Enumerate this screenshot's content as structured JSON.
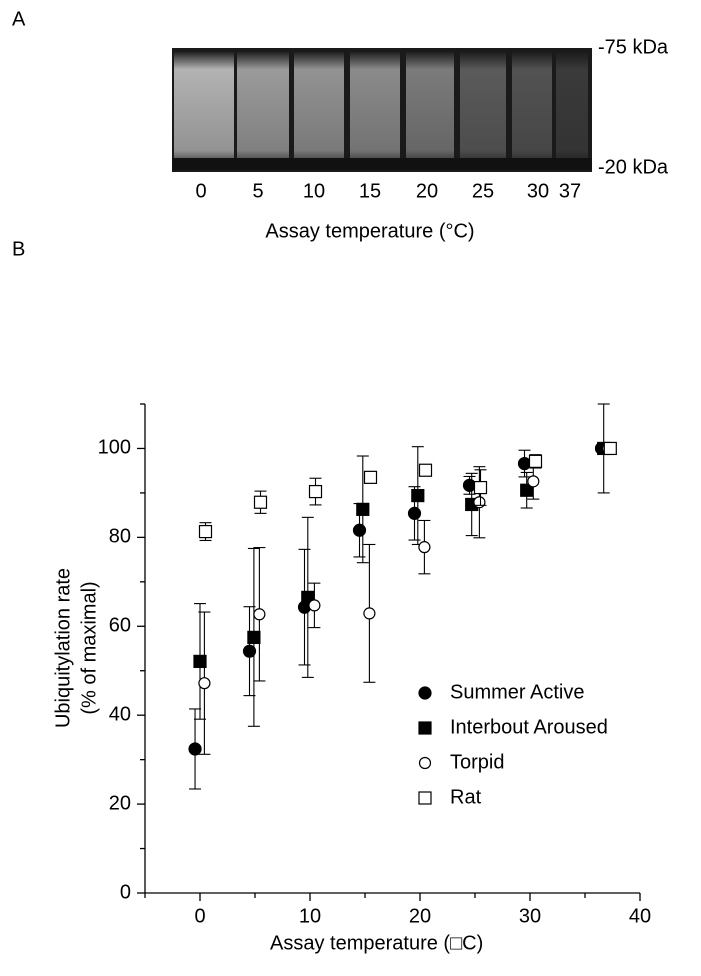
{
  "panel_a": {
    "label": "A",
    "lanes": [
      "0",
      "5",
      "10",
      "15",
      "20",
      "25",
      "30",
      "37"
    ],
    "markers": [
      "-75 kDa",
      "-20 kDa"
    ],
    "xlabel": "Assay temperature (°C)"
  },
  "chart_data": {
    "type": "scatter",
    "panel_label": "B",
    "xlabel": "Assay temperature (□C)",
    "ylabel": [
      "Ubiquitylation rate",
      "(% of maximal)"
    ],
    "xlim": [
      -5,
      40
    ],
    "ylim": [
      0,
      110
    ],
    "xticks": [
      0,
      10,
      20,
      30,
      40
    ],
    "yticks": [
      0,
      20,
      40,
      60,
      80,
      100
    ],
    "xminor": [
      -5,
      5,
      15,
      25,
      35
    ],
    "yminor": [
      10,
      30,
      50,
      70,
      90,
      110
    ],
    "series": [
      {
        "name": "Summer Active",
        "color": "#000000",
        "marker": "circle",
        "filled": true,
        "x": [
          -0.45,
          4.5,
          9.5,
          14.5,
          19.5,
          24.5,
          29.5,
          36.5
        ],
        "values": [
          32.4,
          54.4,
          64.3,
          81.6,
          85.4,
          91.7,
          96.6,
          100
        ],
        "errors": [
          9,
          10,
          13,
          6,
          6,
          2,
          3,
          0
        ]
      },
      {
        "name": "Interbout Aroused",
        "color": "#000000",
        "marker": "square",
        "filled": true,
        "x": [
          0,
          4.9,
          9.8,
          14.8,
          19.8,
          24.7,
          29.7,
          36.7
        ],
        "values": [
          52.1,
          57.5,
          66.5,
          86.3,
          89.4,
          87.4,
          90.6,
          100
        ],
        "errors": [
          13,
          20,
          18,
          12,
          11,
          7,
          4,
          10
        ]
      },
      {
        "name": "Torpid",
        "color": "#000000",
        "marker": "circle",
        "filled": false,
        "x": [
          0.4,
          5.4,
          10.4,
          15.4,
          20.4,
          25.4,
          30.3,
          37.1
        ],
        "values": [
          47.2,
          62.7,
          64.7,
          62.9,
          77.8,
          87.9,
          92.6,
          100
        ],
        "errors": [
          16,
          15,
          5,
          15.5,
          6,
          8,
          4,
          0
        ]
      },
      {
        "name": "Rat",
        "color": "#000000",
        "marker": "square",
        "filled": false,
        "x": [
          0.5,
          5.5,
          10.5,
          15.5,
          20.5,
          25.5,
          30.5,
          37.3
        ],
        "values": [
          81.3,
          87.9,
          90.3,
          93.5,
          95.1,
          91.2,
          97.1,
          100
        ],
        "errors": [
          2,
          2.5,
          3,
          1,
          1,
          4,
          1.5,
          0.5
        ]
      }
    ]
  }
}
